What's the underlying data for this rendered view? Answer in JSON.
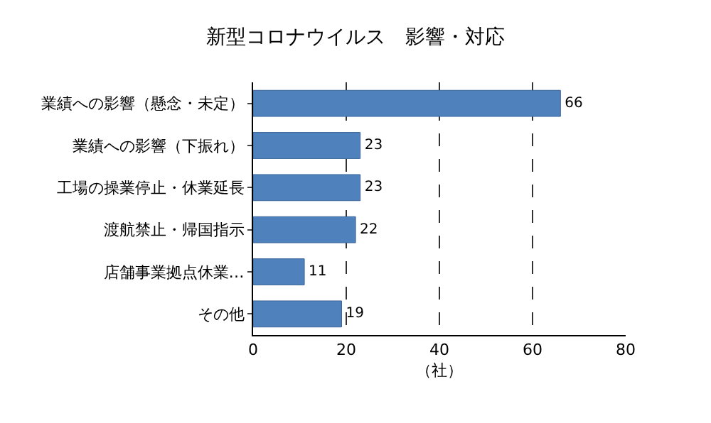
{
  "chart_data": {
    "type": "bar",
    "title": "新型コロナウイルス　影響・対応",
    "xlabel": "（社）",
    "orientation": "horizontal",
    "categories": [
      "業績への影響（懸念・未定）",
      "業績への影響（下振れ）",
      "工場の操業停止・休業延長",
      "渡航禁止・帰国指示",
      "店舗事業拠点休業…",
      "その他"
    ],
    "values": [
      66,
      23,
      23,
      22,
      11,
      19
    ],
    "color": "#4f81bd",
    "xlim": [
      0,
      80
    ],
    "xticks": [
      0,
      20,
      40,
      60,
      80
    ],
    "grid": "x",
    "data_labels": true
  }
}
